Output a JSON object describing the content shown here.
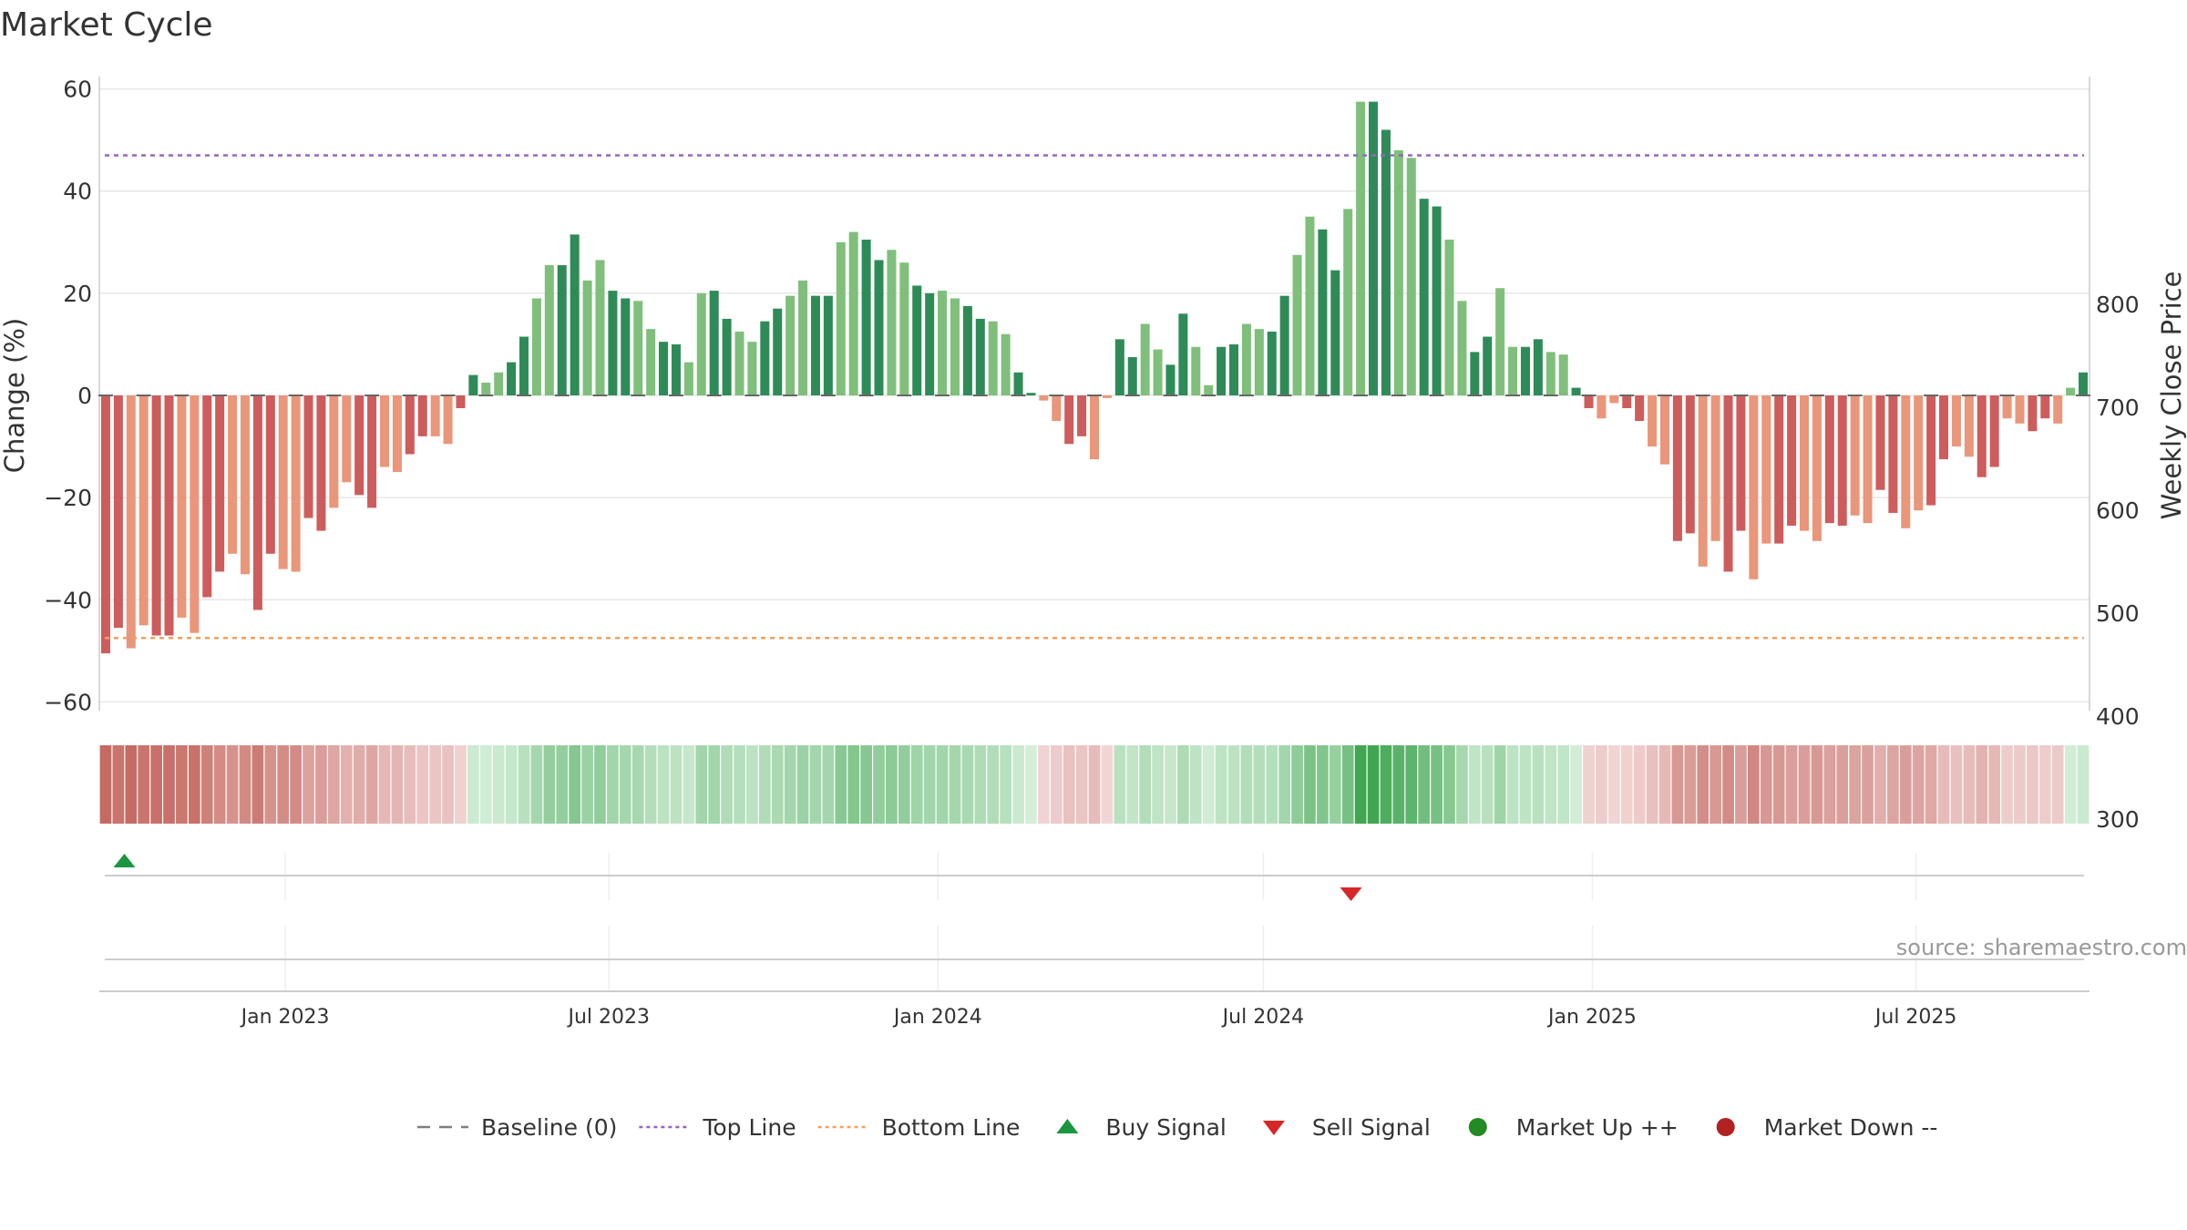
{
  "chart_data": {
    "type": "bar",
    "title": "Market Cycle",
    "ylabel": "Change (%)",
    "y2label": "Weekly Close Price",
    "ylim": [
      -62,
      60
    ],
    "yticks": [
      60,
      40,
      20,
      0,
      -20,
      -40,
      -60
    ],
    "y2lim": [
      232,
      836
    ],
    "y2ticks": [
      800,
      700,
      600,
      500,
      400,
      300
    ],
    "top_line": 47,
    "bottom_line": -47.5,
    "x_start": "2022-09-19",
    "x_end": "2025-10-06",
    "xticks": [
      {
        "date": "2023-01-01",
        "label": "Jan 2023"
      },
      {
        "date": "2023-07-01",
        "label": "Jul 2023"
      },
      {
        "date": "2024-01-01",
        "label": "Jan 2024"
      },
      {
        "date": "2024-07-01",
        "label": "Jul 2024"
      },
      {
        "date": "2025-01-01",
        "label": "Jan 2025"
      },
      {
        "date": "2025-07-01",
        "label": "Jul 2025"
      }
    ],
    "first_week": "2022-09-19",
    "values": [
      -50.5,
      -45.5,
      -49.5,
      -45,
      -47,
      -47,
      -43.5,
      -46.5,
      -39.5,
      -34.5,
      -31,
      -35,
      -42,
      -31,
      -34,
      -34.5,
      -24,
      -26.5,
      -22,
      -17,
      -19.5,
      -22,
      -14,
      -15,
      -11.5,
      -8,
      -8,
      -9.5,
      -2.5,
      4,
      2.5,
      4.5,
      6.5,
      11.5,
      19,
      25.5,
      25.5,
      31.5,
      22.5,
      26.5,
      20.5,
      19,
      18.5,
      13,
      10.5,
      10,
      6.5,
      20,
      20.5,
      15,
      12.5,
      10.5,
      14.5,
      17,
      19.5,
      22.5,
      19.5,
      19.5,
      30,
      32,
      30.5,
      26.5,
      28.5,
      26,
      21.5,
      20,
      20.5,
      19,
      17.5,
      15,
      14.5,
      12,
      4.5,
      0.5,
      -1,
      -5,
      -9.5,
      -8,
      -12.5,
      -0.5,
      11,
      7.5,
      14,
      9,
      6,
      16,
      9.5,
      2,
      9.5,
      10,
      14,
      13,
      12.5,
      19.5,
      27.5,
      35,
      32.5,
      24.5,
      36.5,
      57.5,
      57.5,
      52,
      48,
      46.5,
      38.5,
      37,
      30.5,
      18.5,
      8.5,
      11.5,
      21,
      9.5,
      9.5,
      11,
      8.5,
      8,
      1.5,
      -2.5,
      -4.5,
      -1.5,
      -2.5,
      -5,
      -10,
      -13.5,
      -28.5,
      -27,
      -33.5,
      -28.5,
      -34.5,
      -26.5,
      -36,
      -29,
      -29,
      -25.5,
      -26.5,
      -28.5,
      -25,
      -25.5,
      -23.5,
      -25,
      -18.5,
      -23,
      -26,
      -22.5,
      -21.5,
      -12.5,
      -10,
      -12,
      -16,
      -14,
      -4.5,
      -5.5,
      -7,
      -4.5,
      -5.5,
      1.5,
      4.5
    ],
    "buy_signals": [
      "2022-10-03"
    ],
    "sell_signals": [
      "2024-08-19"
    ],
    "legend": [
      {
        "label": "Baseline (0)",
        "kind": "dash",
        "color": "#7f7f7f"
      },
      {
        "label": "Top Line",
        "kind": "dot",
        "color": "#9467bd"
      },
      {
        "label": "Bottom Line",
        "kind": "dot",
        "color": "#f0a060"
      },
      {
        "label": "Buy Signal",
        "kind": "tri-up",
        "color": "#1a9641"
      },
      {
        "label": "Sell Signal",
        "kind": "tri-down",
        "color": "#d62728"
      },
      {
        "label": "Market Up ++",
        "kind": "circle",
        "color": "#228b22"
      },
      {
        "label": "Market Down --",
        "kind": "circle",
        "color": "#b22222"
      }
    ],
    "colors": {
      "pos_dark": "#2e8b57",
      "pos_light": "#7fbf7b",
      "neg_dark": "#cd5c5c",
      "neg_light": "#e9967a",
      "top_line": "#9467bd",
      "bottom_line": "#f0a060",
      "grid": "#e6e6e6",
      "axis": "#cccccc"
    }
  },
  "source": "source: sharemaestro.com"
}
